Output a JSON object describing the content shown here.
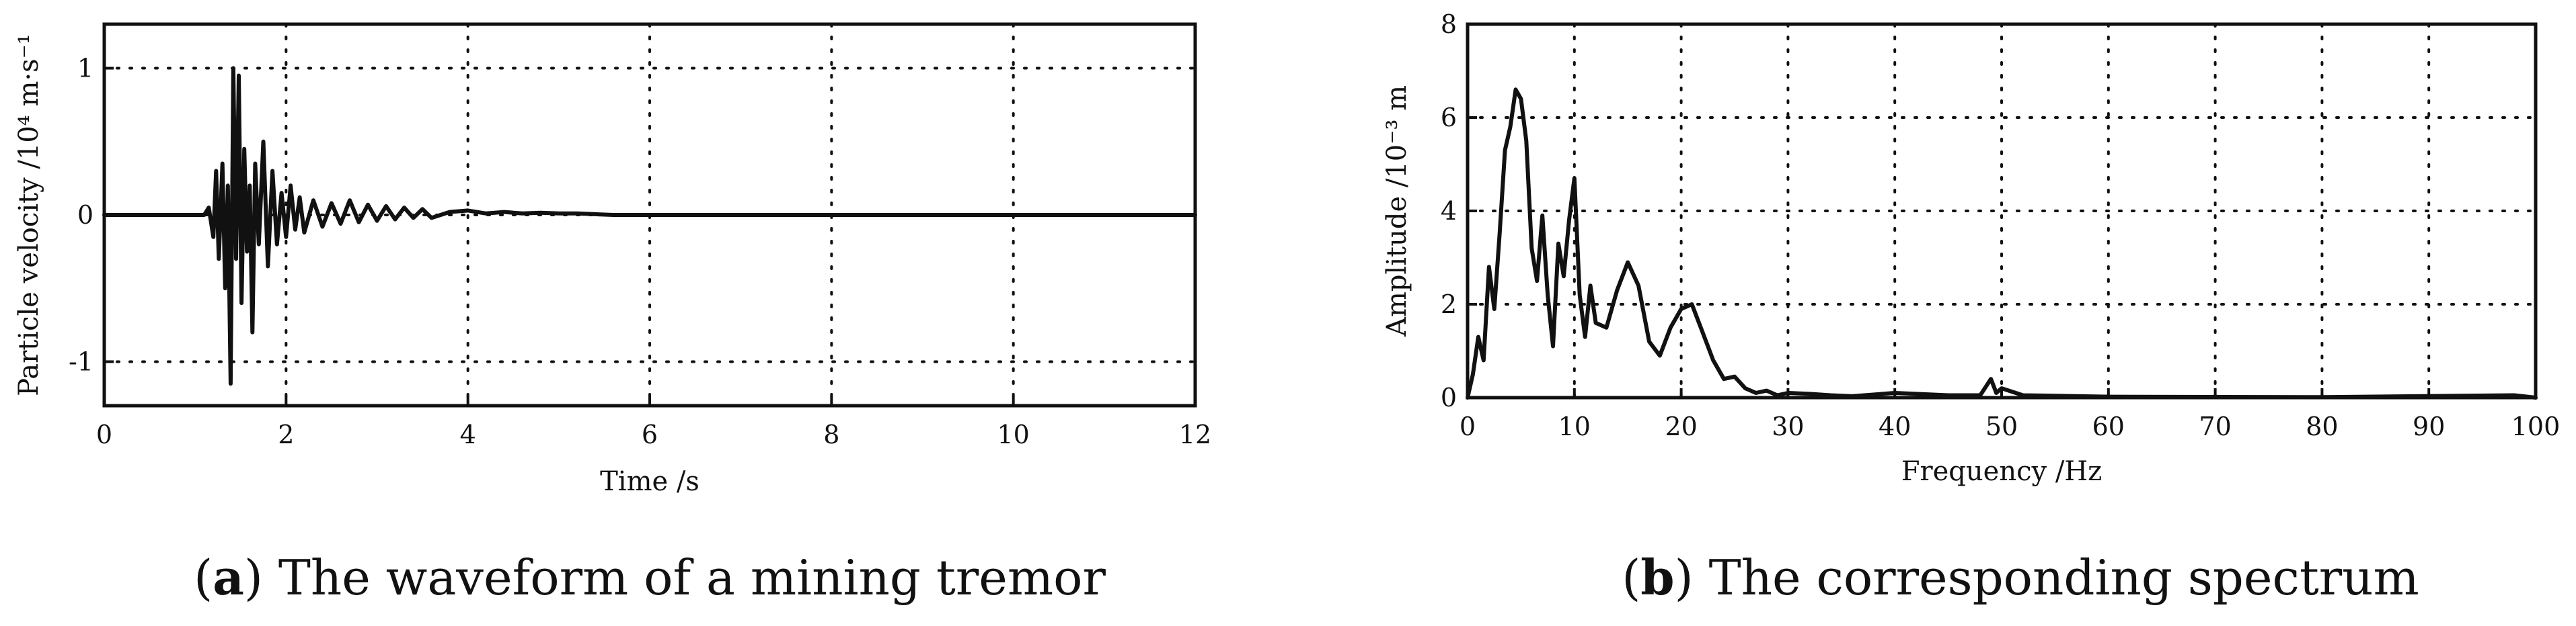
{
  "chart_data": [
    {
      "type": "line",
      "panel_label": "a",
      "caption": "The waveform of a mining tremor",
      "xlabel": "Time /s",
      "ylabel": "Particle velocity /10⁴ m·s⁻¹",
      "xlim": [
        0,
        12
      ],
      "ylim": [
        -1.3,
        1.3
      ],
      "xticks": [
        "0",
        "2",
        "4",
        "6",
        "8",
        "10",
        "12"
      ],
      "yticks": [
        "-1",
        "0",
        "1"
      ],
      "grid": true,
      "series": [
        {
          "x": [
            0,
            1.1,
            1.15,
            1.2,
            1.23,
            1.26,
            1.3,
            1.33,
            1.36,
            1.39,
            1.42,
            1.45,
            1.48,
            1.51,
            1.54,
            1.57,
            1.6,
            1.63,
            1.66,
            1.7,
            1.75,
            1.8,
            1.85,
            1.9,
            1.95,
            2.0,
            2.05,
            2.1,
            2.15,
            2.2,
            2.3,
            2.4,
            2.5,
            2.6,
            2.7,
            2.8,
            2.9,
            3.0,
            3.1,
            3.2,
            3.3,
            3.4,
            3.5,
            3.6,
            3.8,
            4.0,
            4.2,
            4.4,
            4.6,
            4.8,
            5.0,
            5.2,
            5.4,
            5.6,
            6.0,
            8.0,
            10.0,
            12.0
          ],
          "y": [
            0,
            0,
            0.05,
            -0.15,
            0.3,
            -0.3,
            0.35,
            -0.5,
            0.2,
            -1.15,
            1.0,
            -0.3,
            0.95,
            -0.6,
            0.45,
            -0.25,
            0.2,
            -0.8,
            0.35,
            -0.2,
            0.5,
            -0.35,
            0.3,
            -0.2,
            0.15,
            -0.15,
            0.2,
            -0.1,
            0.12,
            -0.12,
            0.1,
            -0.08,
            0.08,
            -0.06,
            0.1,
            -0.05,
            0.07,
            -0.04,
            0.06,
            -0.03,
            0.05,
            -0.02,
            0.04,
            -0.02,
            0.02,
            0.03,
            0.01,
            0.02,
            0.01,
            0.015,
            0.01,
            0.01,
            0.005,
            0,
            0,
            0,
            0,
            0
          ]
        }
      ]
    },
    {
      "type": "line",
      "panel_label": "b",
      "caption": "The corresponding spectrum",
      "xlabel": "Frequency /Hz",
      "ylabel": "Amplitude /10⁻³ m",
      "xlim": [
        0,
        100
      ],
      "ylim": [
        0,
        8
      ],
      "xticks": [
        "0",
        "10",
        "20",
        "30",
        "40",
        "50",
        "60",
        "70",
        "80",
        "90",
        "100"
      ],
      "yticks": [
        "0",
        "2",
        "4",
        "6",
        "8"
      ],
      "grid": true,
      "series": [
        {
          "x": [
            0,
            0.5,
            1,
            1.5,
            2,
            2.5,
            3,
            3.5,
            4,
            4.5,
            5,
            5.5,
            6,
            6.5,
            7,
            7.5,
            8,
            8.5,
            9,
            9.5,
            10,
            10.5,
            11,
            11.5,
            12,
            13,
            14,
            15,
            16,
            17,
            18,
            19,
            20,
            21,
            22,
            23,
            24,
            25,
            26,
            27,
            28,
            29,
            30,
            32,
            34,
            36,
            40,
            45,
            48,
            49,
            49.5,
            50,
            52,
            60,
            80,
            98,
            100
          ],
          "y": [
            0,
            0.5,
            1.3,
            0.8,
            2.8,
            1.9,
            3.5,
            5.3,
            5.8,
            6.6,
            6.4,
            5.5,
            3.2,
            2.5,
            3.9,
            2.2,
            1.1,
            3.3,
            2.6,
            3.8,
            4.7,
            2.2,
            1.3,
            2.4,
            1.6,
            1.5,
            2.3,
            2.9,
            2.4,
            1.2,
            0.9,
            1.5,
            1.9,
            2.0,
            1.4,
            0.8,
            0.4,
            0.45,
            0.2,
            0.1,
            0.15,
            0.05,
            0.1,
            0.08,
            0.05,
            0.03,
            0.1,
            0.05,
            0.05,
            0.4,
            0.1,
            0.2,
            0.05,
            0.02,
            0.01,
            0.05,
            0
          ]
        }
      ]
    }
  ]
}
